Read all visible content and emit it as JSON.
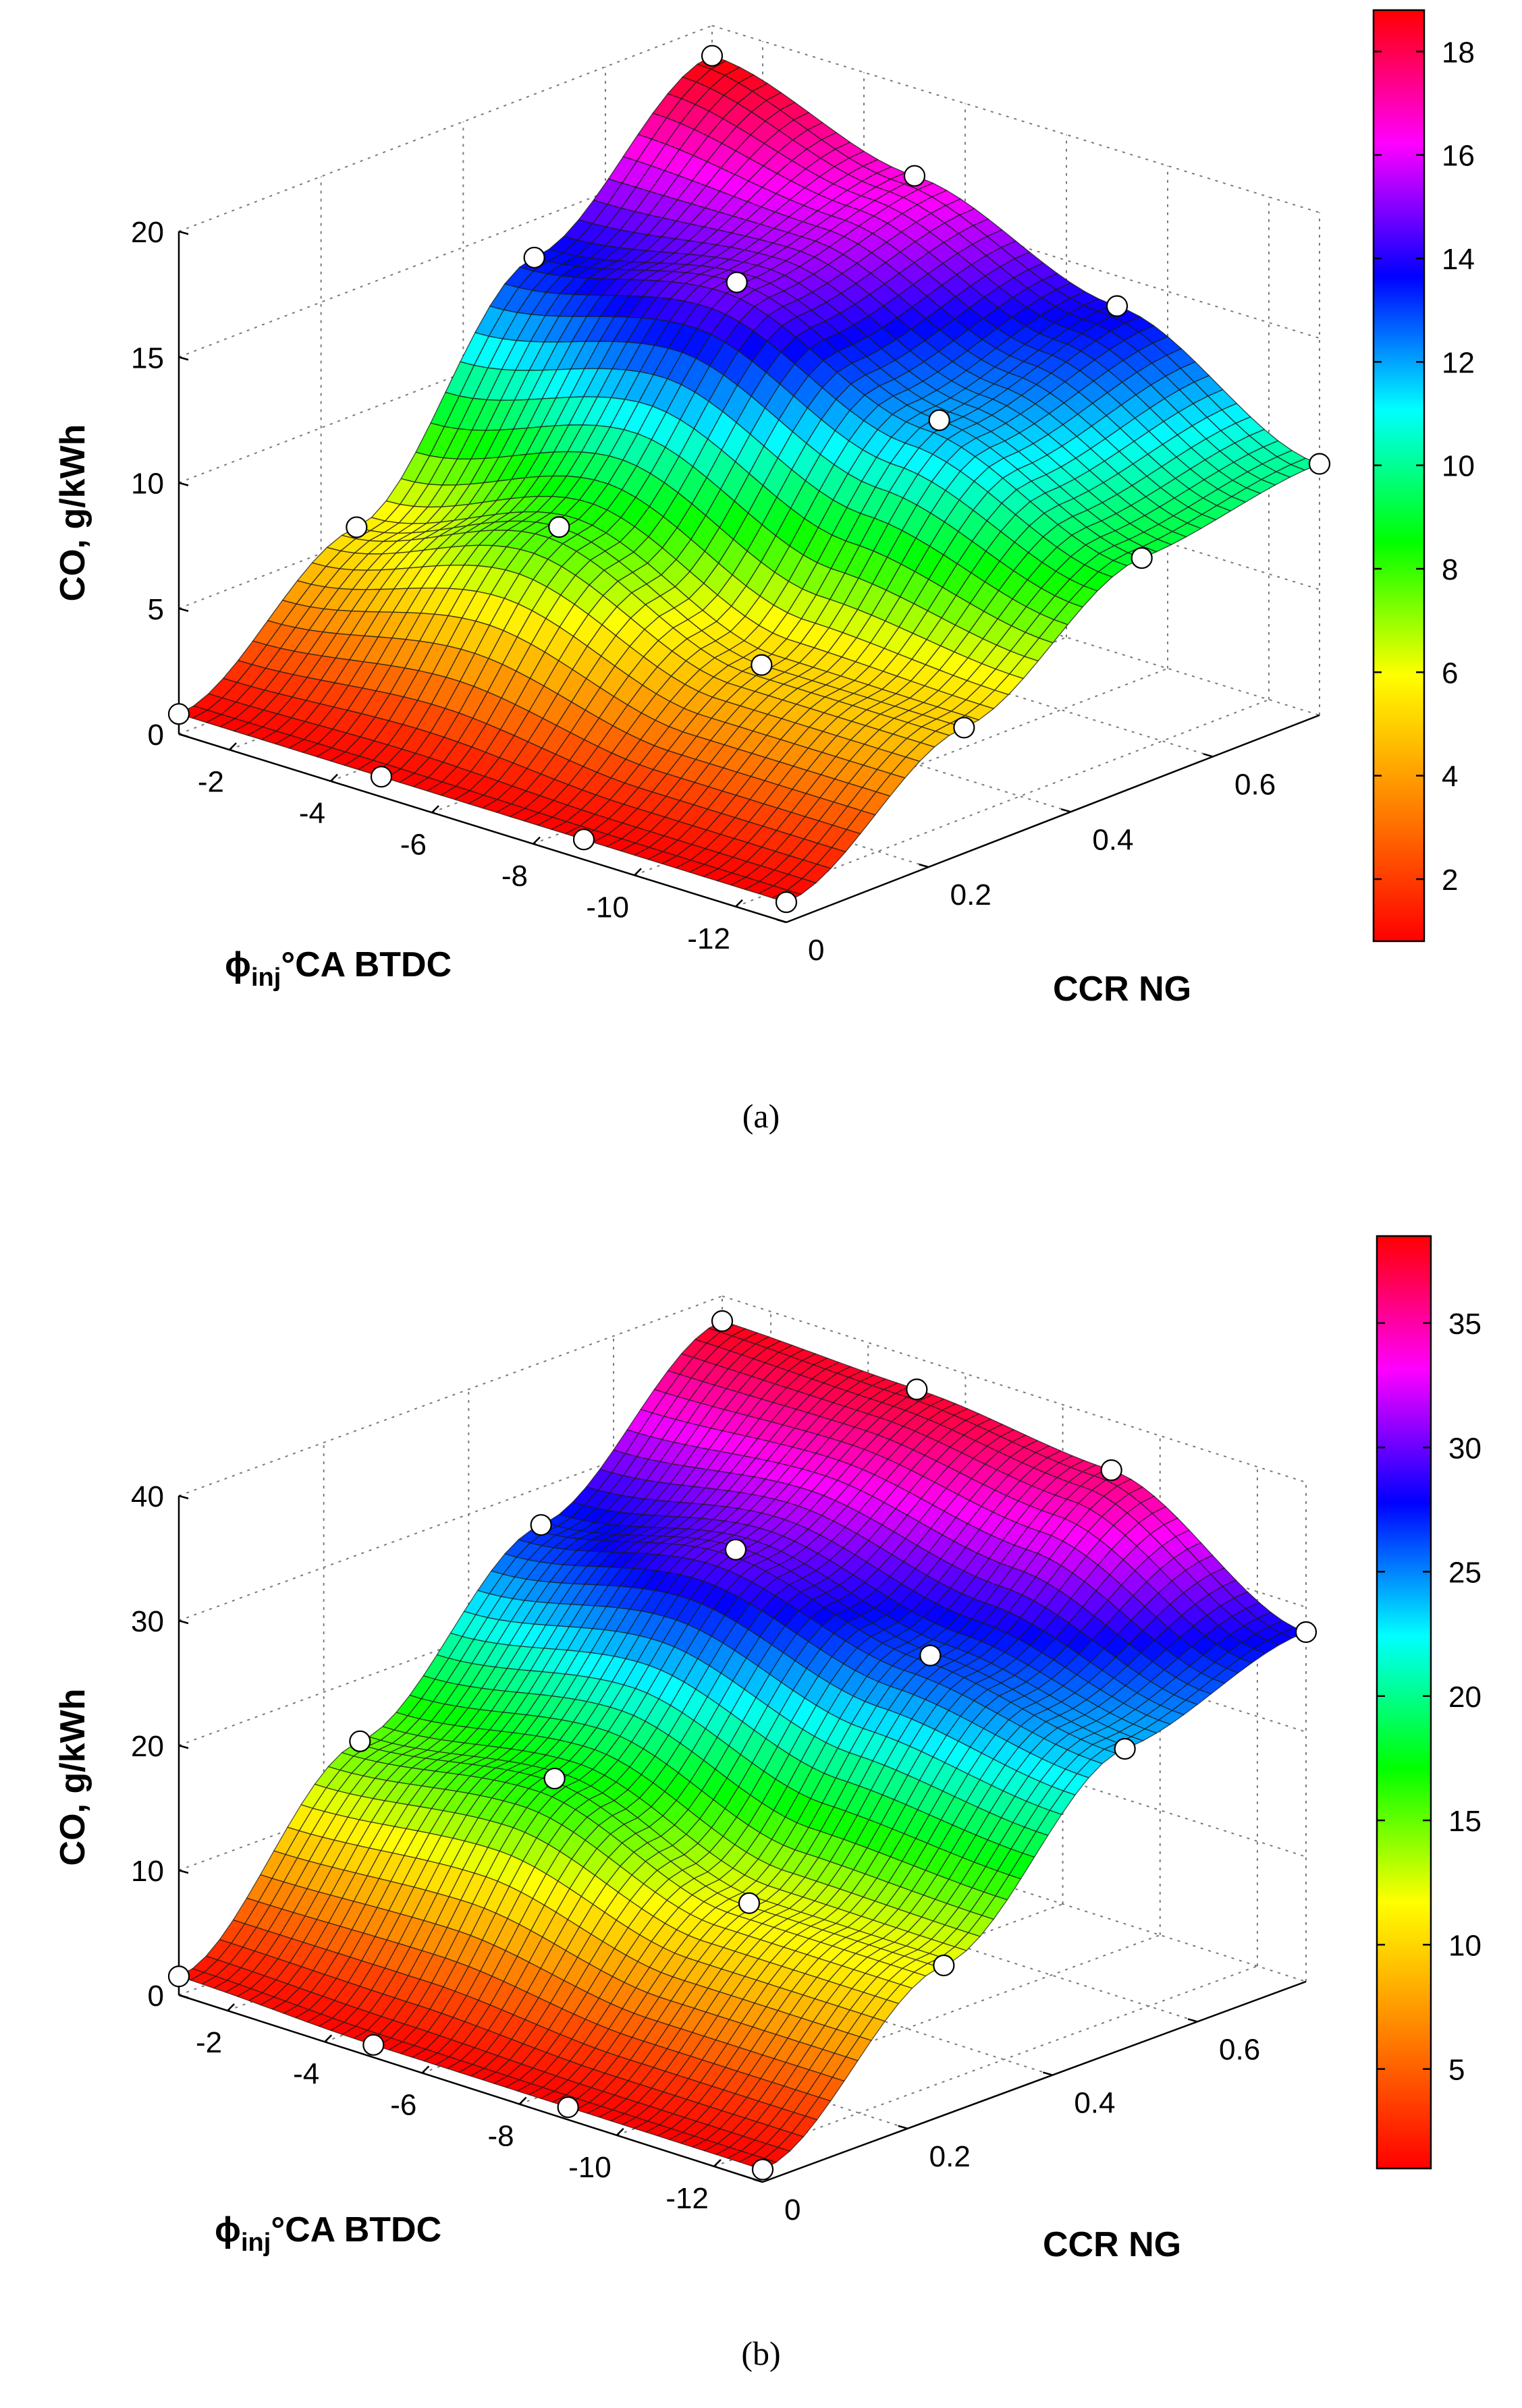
{
  "figure": {
    "captions": [
      "(a)",
      "(b)"
    ]
  },
  "colors": {
    "colormap": [
      "#ff0000",
      "#ff8000",
      "#ffff00",
      "#00ff00",
      "#00ffff",
      "#0000ff",
      "#ff00ff",
      "#ff0000"
    ],
    "mesh": "#1a1a1a",
    "marker_fill": "#ffffff",
    "marker_stroke": "#000000",
    "grid": "#7a7a7a"
  },
  "chart_data": [
    {
      "type": "surface3d",
      "panel": "a",
      "caption": "(a)",
      "zlabel": "CO, g/kWh",
      "xlabel_symbol": "ϕ",
      "xlabel_sub": "inj",
      "xlabel_rest": "°CA BTDC",
      "ylabel": "CCR NG",
      "x_ticks": [
        "-2",
        "-4",
        "-6",
        "-8",
        "-10",
        "-12"
      ],
      "y_ticks": [
        "0",
        "0.2",
        "0.4",
        "0.6"
      ],
      "z_ticks": [
        "0",
        "5",
        "10",
        "15",
        "20"
      ],
      "zlim": [
        0,
        20
      ],
      "colorbar_ticks": [
        "2",
        "4",
        "6",
        "8",
        "10",
        "12",
        "14",
        "16",
        "18"
      ],
      "clim": [
        0.8,
        18.8
      ],
      "injection_timing": [
        -1,
        -5,
        -9,
        -13
      ],
      "ccr_ng": [
        0,
        0.25,
        0.5,
        0.75
      ],
      "co_values": [
        [
          0.8,
          5.5,
          13.5,
          18.8
        ],
        [
          0.8,
          8.0,
          15.0,
          16.5
        ],
        [
          0.8,
          5.0,
          12.0,
          13.8
        ],
        [
          0.8,
          5.0,
          9.0,
          10.0
        ]
      ]
    },
    {
      "type": "surface3d",
      "panel": "b",
      "caption": "(b)",
      "zlabel": "CO, g/kWh",
      "xlabel_symbol": "ϕ",
      "xlabel_sub": "inj",
      "xlabel_rest": "°CA BTDC",
      "ylabel": "CCR NG",
      "x_ticks": [
        "-2",
        "-4",
        "-6",
        "-8",
        "-10",
        "-12"
      ],
      "y_ticks": [
        "0",
        "0.2",
        "0.4",
        "0.6"
      ],
      "z_ticks": [
        "0",
        "10",
        "20",
        "30",
        "40"
      ],
      "zlim": [
        0,
        40
      ],
      "colorbar_ticks": [
        "5",
        "10",
        "15",
        "20",
        "25",
        "30",
        "35"
      ],
      "clim": [
        1,
        38.5
      ],
      "injection_timing": [
        -1,
        -5,
        -9,
        -13
      ],
      "ccr_ng": [
        0,
        0.25,
        0.5,
        0.75
      ],
      "co_values": [
        [
          1.5,
          15.0,
          27.0,
          38.0
        ],
        [
          1.0,
          17.0,
          30.0,
          37.5
        ],
        [
          1.0,
          12.0,
          26.5,
          36.0
        ],
        [
          1.0,
          12.0,
          24.0,
          28.0
        ]
      ]
    }
  ]
}
